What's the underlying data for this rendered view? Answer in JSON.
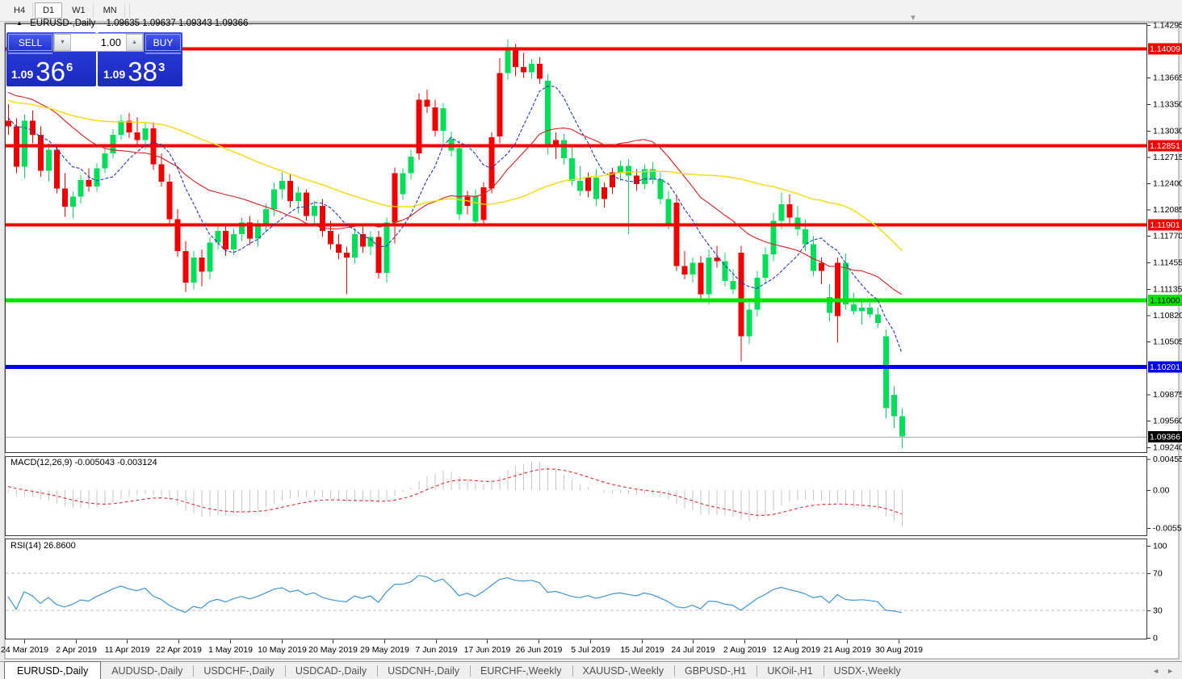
{
  "toolbar": {
    "timeframes": [
      {
        "label": "H4",
        "active": false
      },
      {
        "label": "D1",
        "active": true
      },
      {
        "label": "W1",
        "active": false
      },
      {
        "label": "MN",
        "active": false
      }
    ]
  },
  "header": {
    "symbol": "EURUSD-,Daily",
    "ohlc": "1.09635 1.09637 1.09343 1.09366"
  },
  "trade_widget": {
    "sell_label": "SELL",
    "buy_label": "BUY",
    "volume": "1.00",
    "sell_price_small": "1.09",
    "sell_price_big": "36",
    "sell_price_sup": "6",
    "buy_price_small": "1.09",
    "buy_price_big": "38",
    "buy_price_sup": "3"
  },
  "icons": {
    "collapse": "▲",
    "spinner_down": "▼",
    "spinner_up": "▲",
    "scroll_hint": "▼",
    "tab_scroll_left": "◄",
    "tab_scroll_right": "►"
  },
  "colors": {
    "bull": "#00DE5A",
    "bear": "#F20000",
    "ma_fast": "#2434c8",
    "ma_mid": "#d62020",
    "ma_slow": "#f2dc00",
    "level_red": "#f60000",
    "level_green": "#00e400",
    "level_blue": "#0000f0",
    "macd_bar": "#c6c6c6",
    "macd_signal": "#e03030",
    "rsi_line": "#3e96d2"
  },
  "chart_data": {
    "type": "candlestick",
    "title": "EURUSD-,Daily",
    "x_labels": [
      "24 Mar 2019",
      "2 Apr 2019",
      "11 Apr 2019",
      "22 Apr 2019",
      "1 May 2019",
      "10 May 2019",
      "20 May 2019",
      "29 May 2019",
      "7 Jun 2019",
      "17 Jun 2019",
      "26 Jun 2019",
      "5 Jul 2019",
      "15 Jul 2019",
      "24 Jul 2019",
      "2 Aug 2019",
      "12 Aug 2019",
      "21 Aug 2019",
      "30 Aug 2019"
    ],
    "y_axis_labels": [
      "1.14295",
      "1.13665",
      "1.13350",
      "1.13030",
      "1.12715",
      "1.12400",
      "1.12085",
      "1.11770",
      "1.11455",
      "1.11135",
      "1.10820",
      "1.10505",
      "1.09875",
      "1.09560",
      "1.09240"
    ],
    "ylim": [
      1.092,
      1.14295
    ],
    "levels": [
      {
        "price": 1.14009,
        "label": "1.14009",
        "color": "#f60000",
        "text_color": "#ffffff",
        "thickness": 4
      },
      {
        "price": 1.12851,
        "label": "1.12851",
        "color": "#f60000",
        "text_color": "#ffffff",
        "thickness": 4
      },
      {
        "price": 1.11901,
        "label": "1.11901",
        "color": "#f60000",
        "text_color": "#ffffff",
        "thickness": 4
      },
      {
        "price": 1.11,
        "label": "1.11000",
        "color": "#00e400",
        "text_color": "#000000",
        "thickness": 5
      },
      {
        "price": 1.10201,
        "label": "1.10201",
        "color": "#0000f0",
        "text_color": "#ffffff",
        "thickness": 5
      }
    ],
    "current_price": {
      "price": 1.09366,
      "label": "1.09366",
      "box_color": "#000000",
      "text_color": "#ffffff"
    },
    "moving_averages": [
      {
        "period": 8,
        "color": "#2434c8",
        "dash": "4,2",
        "width": 1.1
      },
      {
        "period": 20,
        "color": "#d62020",
        "dash": "",
        "width": 1.1
      },
      {
        "period": 45,
        "color": "#f2dc00",
        "dash": "",
        "width": 1.4
      }
    ],
    "seed_history": [
      1.1295,
      1.13,
      1.131,
      1.1305,
      1.1318,
      1.133,
      1.1325,
      1.134,
      1.1352,
      1.1348,
      1.136,
      1.1372,
      1.1368,
      1.138,
      1.1392,
      1.14,
      1.139,
      1.1372,
      1.1355,
      1.134,
      1.133,
      1.1322,
      1.1318,
      1.1314,
      1.131,
      1.1306
    ],
    "candles": [
      [
        1.1315,
        1.1335,
        1.1298,
        1.1308,
        "r"
      ],
      [
        1.1308,
        1.1318,
        1.1252,
        1.126,
        "r"
      ],
      [
        1.126,
        1.1322,
        1.1246,
        1.1315,
        "g"
      ],
      [
        1.1315,
        1.1327,
        1.1288,
        1.1298,
        "r"
      ],
      [
        1.1298,
        1.1308,
        1.1248,
        1.1255,
        "r"
      ],
      [
        1.1255,
        1.1288,
        1.1242,
        1.128,
        "g"
      ],
      [
        1.128,
        1.1285,
        1.1228,
        1.1234,
        "r"
      ],
      [
        1.1234,
        1.1252,
        1.12,
        1.1212,
        "r"
      ],
      [
        1.1212,
        1.123,
        1.1198,
        1.1224,
        "g"
      ],
      [
        1.1224,
        1.125,
        1.1216,
        1.1244,
        "g"
      ],
      [
        1.1244,
        1.1258,
        1.123,
        1.1236,
        "r"
      ],
      [
        1.1236,
        1.1264,
        1.123,
        1.1258,
        "g"
      ],
      [
        1.1258,
        1.1282,
        1.1252,
        1.1276,
        "g"
      ],
      [
        1.1276,
        1.1305,
        1.127,
        1.1298,
        "g"
      ],
      [
        1.1298,
        1.1322,
        1.1292,
        1.1315,
        "g"
      ],
      [
        1.1315,
        1.1324,
        1.1294,
        1.1301,
        "r"
      ],
      [
        1.1301,
        1.1319,
        1.1284,
        1.1292,
        "r"
      ],
      [
        1.1292,
        1.1312,
        1.128,
        1.1306,
        "g"
      ],
      [
        1.1306,
        1.1313,
        1.1256,
        1.1263,
        "r"
      ],
      [
        1.1263,
        1.1276,
        1.1236,
        1.1242,
        "r"
      ],
      [
        1.1242,
        1.1251,
        1.119,
        1.1197,
        "r"
      ],
      [
        1.1197,
        1.1209,
        1.1152,
        1.1159,
        "r"
      ],
      [
        1.1159,
        1.1171,
        1.111,
        1.1121,
        "r"
      ],
      [
        1.1121,
        1.1159,
        1.1113,
        1.1151,
        "g"
      ],
      [
        1.1151,
        1.1161,
        1.1117,
        1.1134,
        "r"
      ],
      [
        1.1134,
        1.1176,
        1.1125,
        1.1169,
        "g"
      ],
      [
        1.1169,
        1.1189,
        1.1161,
        1.1183,
        "g"
      ],
      [
        1.1183,
        1.1191,
        1.1153,
        1.1161,
        "r"
      ],
      [
        1.1161,
        1.1186,
        1.1154,
        1.1179,
        "g"
      ],
      [
        1.1179,
        1.1199,
        1.1171,
        1.1193,
        "g"
      ],
      [
        1.1193,
        1.1201,
        1.1166,
        1.1174,
        "r"
      ],
      [
        1.1174,
        1.1196,
        1.1164,
        1.1189,
        "g"
      ],
      [
        1.1189,
        1.1216,
        1.1181,
        1.1209,
        "g"
      ],
      [
        1.1209,
        1.1241,
        1.1201,
        1.1233,
        "g"
      ],
      [
        1.1233,
        1.1253,
        1.1221,
        1.1243,
        "g"
      ],
      [
        1.1243,
        1.1251,
        1.1211,
        1.1219,
        "r"
      ],
      [
        1.1219,
        1.1236,
        1.1204,
        1.1229,
        "g"
      ],
      [
        1.1229,
        1.1233,
        1.1195,
        1.1201,
        "r"
      ],
      [
        1.1201,
        1.1219,
        1.1189,
        1.1213,
        "g"
      ],
      [
        1.1213,
        1.1221,
        1.1176,
        1.1183,
        "r"
      ],
      [
        1.1183,
        1.1195,
        1.1161,
        1.1167,
        "r"
      ],
      [
        1.1167,
        1.1179,
        1.1149,
        1.1157,
        "r"
      ],
      [
        1.1157,
        1.1164,
        1.1107,
        1.1151,
        "r"
      ],
      [
        1.1151,
        1.1186,
        1.1144,
        1.1179,
        "g"
      ],
      [
        1.1179,
        1.1189,
        1.1157,
        1.1164,
        "r"
      ],
      [
        1.1164,
        1.1183,
        1.1154,
        1.1176,
        "g"
      ],
      [
        1.1176,
        1.1183,
        1.1126,
        1.1133,
        "r"
      ],
      [
        1.1133,
        1.1199,
        1.1121,
        1.1193,
        "g"
      ],
      [
        1.1193,
        1.1259,
        1.1168,
        1.1252,
        "r"
      ],
      [
        1.1227,
        1.1258,
        1.122,
        1.1252,
        "g"
      ],
      [
        1.1252,
        1.128,
        1.1245,
        1.1272,
        "g"
      ],
      [
        1.1276,
        1.1348,
        1.1268,
        1.134,
        "r"
      ],
      [
        1.134,
        1.1352,
        1.1324,
        1.1332,
        "r"
      ],
      [
        1.1331,
        1.134,
        1.1296,
        1.1303,
        "r"
      ],
      [
        1.1303,
        1.1336,
        1.1288,
        1.133,
        "g"
      ],
      [
        1.1293,
        1.1302,
        1.1272,
        1.1279,
        "g"
      ],
      [
        1.1282,
        1.1292,
        1.1196,
        1.1203,
        "g"
      ],
      [
        1.1213,
        1.1231,
        1.1203,
        1.1224,
        "r"
      ],
      [
        1.1225,
        1.1233,
        1.1188,
        1.1194,
        "g"
      ],
      [
        1.1196,
        1.1241,
        1.119,
        1.1235,
        "r"
      ],
      [
        1.1234,
        1.1301,
        1.1228,
        1.1295,
        "r"
      ],
      [
        1.1296,
        1.139,
        1.1288,
        1.1372,
        "r"
      ],
      [
        1.1372,
        1.1412,
        1.1364,
        1.14,
        "g"
      ],
      [
        1.14,
        1.1407,
        1.1368,
        1.1379,
        "r"
      ],
      [
        1.1379,
        1.1396,
        1.1366,
        1.1373,
        "r"
      ],
      [
        1.1373,
        1.1389,
        1.1365,
        1.1383,
        "g"
      ],
      [
        1.1383,
        1.1391,
        1.1359,
        1.1365,
        "r"
      ],
      [
        1.1363,
        1.1371,
        1.1275,
        1.1283,
        "g"
      ],
      [
        1.1283,
        1.1301,
        1.1269,
        1.1292,
        "r"
      ],
      [
        1.1292,
        1.1299,
        1.1263,
        1.127,
        "g"
      ],
      [
        1.127,
        1.1283,
        1.1237,
        1.1243,
        "g"
      ],
      [
        1.1243,
        1.1261,
        1.1225,
        1.1231,
        "g"
      ],
      [
        1.1231,
        1.1253,
        1.1223,
        1.1247,
        "r"
      ],
      [
        1.1247,
        1.1257,
        1.1213,
        1.1221,
        "g"
      ],
      [
        1.1221,
        1.1241,
        1.1211,
        1.1235,
        "r"
      ],
      [
        1.1235,
        1.1259,
        1.1227,
        1.1253,
        "r"
      ],
      [
        1.1253,
        1.1267,
        1.1243,
        1.1261,
        "g"
      ],
      [
        1.1261,
        1.1269,
        1.1179,
        1.1249,
        "g"
      ],
      [
        1.1249,
        1.1257,
        1.1231,
        1.1239,
        "r"
      ],
      [
        1.1239,
        1.1263,
        1.1233,
        1.1257,
        "g"
      ],
      [
        1.1257,
        1.1265,
        1.1239,
        1.1245,
        "g"
      ],
      [
        1.1245,
        1.1253,
        1.1215,
        1.1221,
        "g"
      ],
      [
        1.1221,
        1.1231,
        1.1185,
        1.1191,
        "g"
      ],
      [
        1.1217,
        1.1225,
        1.1135,
        1.1141,
        "r"
      ],
      [
        1.1141,
        1.1159,
        1.1125,
        1.1131,
        "r"
      ],
      [
        1.1131,
        1.1151,
        1.1121,
        1.1145,
        "g"
      ],
      [
        1.1145,
        1.1153,
        1.1101,
        1.1107,
        "r"
      ],
      [
        1.1107,
        1.1161,
        1.1095,
        1.1151,
        "g"
      ],
      [
        1.1151,
        1.1165,
        1.1139,
        1.1147,
        "r"
      ],
      [
        1.1147,
        1.1157,
        1.1117,
        1.1123,
        "g"
      ],
      [
        1.1123,
        1.1137,
        1.1107,
        1.1113,
        "g"
      ],
      [
        1.1157,
        1.1165,
        1.1027,
        1.1057,
        "r"
      ],
      [
        1.1057,
        1.1097,
        1.1047,
        1.1089,
        "g"
      ],
      [
        1.1089,
        1.1135,
        1.1081,
        1.1127,
        "g"
      ],
      [
        1.1127,
        1.1163,
        1.1119,
        1.1155,
        "g"
      ],
      [
        1.1155,
        1.1205,
        1.1147,
        1.1195,
        "g"
      ],
      [
        1.1195,
        1.1229,
        1.1185,
        1.1215,
        "g"
      ],
      [
        1.1215,
        1.1227,
        1.1191,
        1.1199,
        "r"
      ],
      [
        1.1199,
        1.1213,
        1.1177,
        1.1185,
        "g"
      ],
      [
        1.1185,
        1.1197,
        1.1159,
        1.1167,
        "g"
      ],
      [
        1.1167,
        1.1177,
        1.1129,
        1.1135,
        "g"
      ],
      [
        1.1135,
        1.1151,
        1.1119,
        1.1145,
        "r"
      ],
      [
        1.1104,
        1.1119,
        1.1075,
        1.1085,
        "g"
      ],
      [
        1.1081,
        1.1151,
        1.1049,
        1.1145,
        "r"
      ],
      [
        1.1145,
        1.1156,
        1.1089,
        1.1095,
        "g"
      ],
      [
        1.1095,
        1.1109,
        1.1083,
        1.1087,
        "g"
      ],
      [
        1.1087,
        1.1099,
        1.1071,
        1.1091,
        "g"
      ],
      [
        1.1091,
        1.1101,
        1.1079,
        1.1083,
        "g"
      ],
      [
        1.1083,
        1.1091,
        1.1067,
        1.1073,
        "g"
      ],
      [
        1.1057,
        1.1065,
        1.0959,
        1.0971,
        "g"
      ],
      [
        1.0987,
        1.0997,
        1.0947,
        1.0961,
        "g"
      ],
      [
        1.0961,
        1.0971,
        1.0923,
        1.0937,
        "g"
      ]
    ],
    "macd": {
      "label": "MACD(12,26,9) -0.005043 -0.003124",
      "fast": 12,
      "slow": 26,
      "signal": 9,
      "main_value": -0.005043,
      "signal_value": -0.003124,
      "axis_labels": [
        {
          "v": 0.00455,
          "label": "0.00455"
        },
        {
          "v": 0.0,
          "label": "0.00"
        },
        {
          "v": -0.0055,
          "label": "-0.0055"
        }
      ]
    },
    "rsi": {
      "label": "RSI(14) 26.8600",
      "period": 14,
      "value": 26.86,
      "axis_labels": [
        {
          "v": 100,
          "label": "100"
        },
        {
          "v": 70,
          "label": "70"
        },
        {
          "v": 30,
          "label": "30"
        },
        {
          "v": 0,
          "label": "0"
        }
      ],
      "guide_levels": [
        70,
        30
      ]
    }
  },
  "tabs": {
    "items": [
      {
        "label": "EURUSD-,Daily",
        "active": true
      },
      {
        "label": "AUDUSD-,Daily",
        "active": false
      },
      {
        "label": "USDCHF-,Daily",
        "active": false
      },
      {
        "label": "USDCAD-,Daily",
        "active": false
      },
      {
        "label": "USDCNH-,Daily",
        "active": false
      },
      {
        "label": "EURCHF-,Weekly",
        "active": false
      },
      {
        "label": "XAUUSD-,Weekly",
        "active": false
      },
      {
        "label": "GBPUSD-,H1",
        "active": false
      },
      {
        "label": "UKOil-,H1",
        "active": false
      },
      {
        "label": "USDX-,Weekly",
        "active": false
      }
    ]
  }
}
